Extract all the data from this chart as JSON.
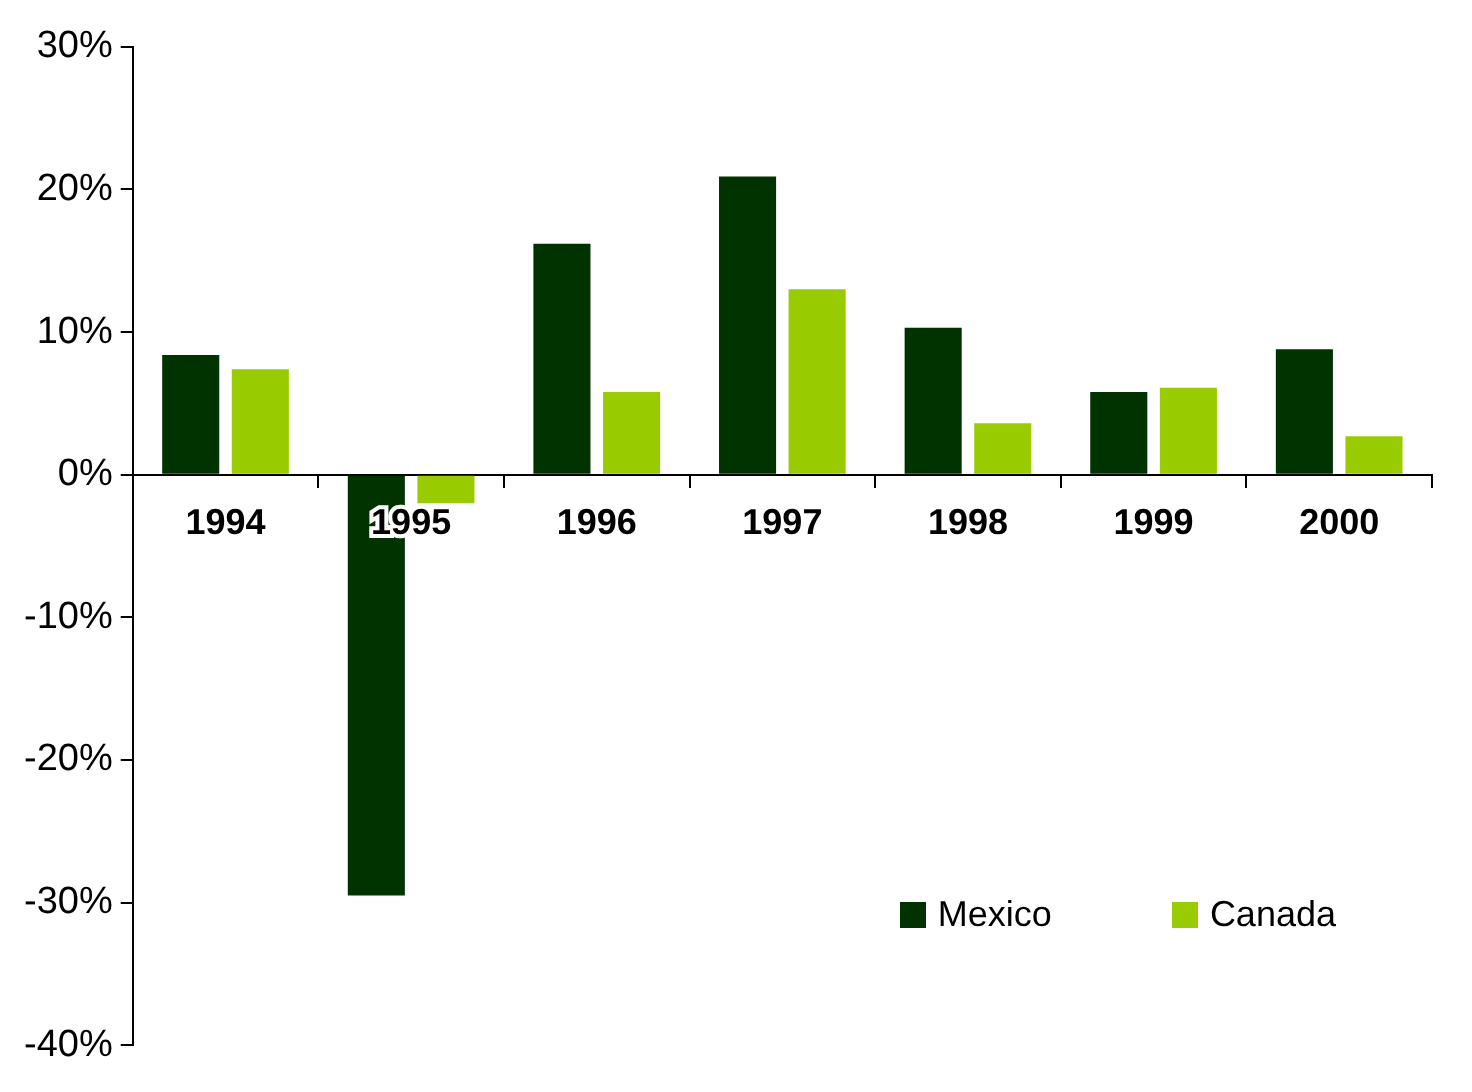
{
  "chart_data": {
    "type": "bar",
    "categories": [
      "1994",
      "1995",
      "1996",
      "1997",
      "1998",
      "1999",
      "2000"
    ],
    "series": [
      {
        "name": "Mexico",
        "color": "#003300",
        "values": [
          8.4,
          -29.5,
          16.2,
          20.9,
          10.3,
          5.8,
          8.8
        ]
      },
      {
        "name": "Canada",
        "color": "#99cc00",
        "values": [
          7.4,
          -2.0,
          5.8,
          13.0,
          3.6,
          6.1,
          2.7
        ]
      }
    ],
    "ylim": [
      -40,
      30
    ],
    "yticks": [
      {
        "value": -40,
        "label": "-40%"
      },
      {
        "value": -30,
        "label": "-30%"
      },
      {
        "value": -20,
        "label": "-20%"
      },
      {
        "value": -10,
        "label": "-10%"
      },
      {
        "value": 0,
        "label": "0%"
      },
      {
        "value": 10,
        "label": "10%"
      },
      {
        "value": 20,
        "label": "20%"
      },
      {
        "value": 30,
        "label": "30%"
      }
    ],
    "legend": "bottom right"
  }
}
